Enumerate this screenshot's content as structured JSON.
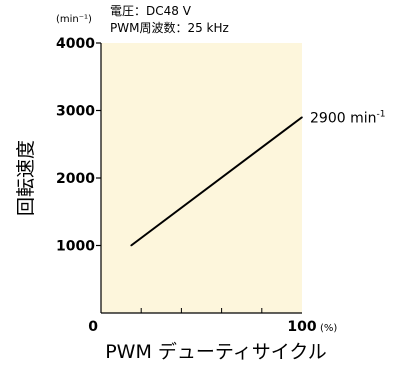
{
  "chart_data": {
    "type": "line",
    "ylabel": "回転速度",
    "xlabel": "PWM デューティサイクル",
    "y_unit": "(min⁻¹)",
    "x_unit": "(%)",
    "conditions": [
      "電圧：DC48 V",
      "PWM周波数：25 kHz"
    ],
    "xlim": [
      0,
      100
    ],
    "ylim": [
      0,
      4000
    ],
    "x_tick_labels": [
      {
        "value": 0,
        "label": "0"
      },
      {
        "value": 100,
        "label": "100"
      }
    ],
    "x_minor_ticks": [
      20,
      40,
      60,
      80
    ],
    "y_ticks": [
      {
        "value": 1000,
        "label": "1000"
      },
      {
        "value": 2000,
        "label": "2000"
      },
      {
        "value": 3000,
        "label": "3000"
      },
      {
        "value": 4000,
        "label": "4000"
      }
    ],
    "series": [
      {
        "x": [
          15,
          100
        ],
        "y": [
          1000,
          2900
        ]
      }
    ],
    "end_annotation": {
      "text": "2900 min",
      "sup": "-1"
    },
    "grid": false,
    "plot_background": "#fdf6dc",
    "line_color": "#000000"
  }
}
